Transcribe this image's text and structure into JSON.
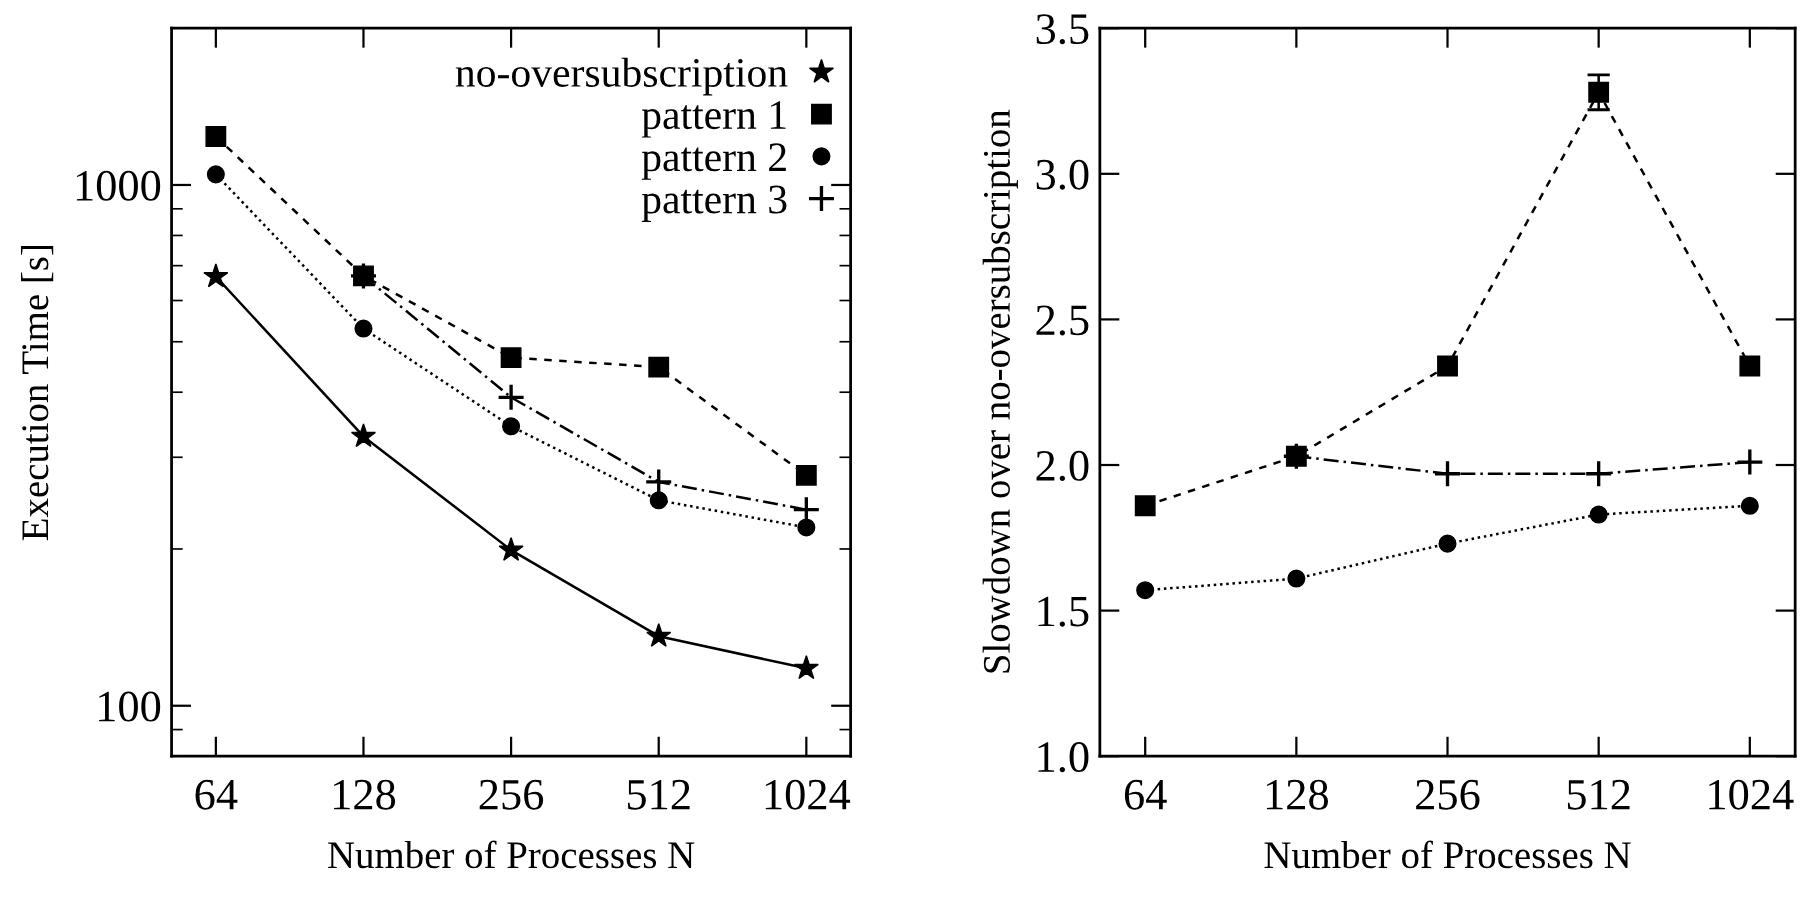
{
  "chart_data": [
    {
      "type": "line",
      "categories": [
        "64",
        "128",
        "256",
        "512",
        "1024"
      ],
      "xlabel": "Number of Processes N",
      "ylabel": "Execution Time [s]",
      "log": "y",
      "ylim": [
        80,
        2000
      ],
      "yticks": [
        100,
        1000
      ],
      "legend": "top right",
      "series": [
        {
          "name": "no-oversubscription",
          "color": "#000000",
          "marker": "star",
          "line_style": "solid",
          "values": [
            667,
            329,
            199,
            136,
            118
          ]
        },
        {
          "name": "pattern 1",
          "color": "#000000",
          "marker": "square",
          "line_style": "dashed",
          "values": [
            1239,
            669,
            466,
            447,
            277
          ]
        },
        {
          "name": "pattern 2",
          "color": "#000000",
          "marker": "circle",
          "line_style": "dotted",
          "values": [
            1048,
            530,
            344,
            248,
            220
          ]
        },
        {
          "name": "pattern 3",
          "color": "#000000",
          "marker": "cross",
          "line_style": "dashdot",
          "values": [
            null,
            669,
            391,
            269,
            238
          ]
        }
      ]
    },
    {
      "type": "line",
      "categories": [
        "64",
        "128",
        "256",
        "512",
        "1024"
      ],
      "xlabel": "Number of Processes N",
      "ylabel": "Slowdown over no-oversubscription",
      "ylim": [
        1.0,
        3.5
      ],
      "yticks": [
        {
          "value": 1.0,
          "label": "1.0"
        },
        {
          "value": 1.5,
          "label": "1.5"
        },
        {
          "value": 2.0,
          "label": "2.0"
        },
        {
          "value": 2.5,
          "label": "2.5"
        },
        {
          "value": 3.0,
          "label": "3.0"
        },
        {
          "value": 3.5,
          "label": "3.5"
        }
      ],
      "series": [
        {
          "color": "#000000",
          "marker": "square",
          "line_style": "dashed",
          "values": [
            1.86,
            2.03,
            2.34,
            3.28,
            2.34
          ],
          "errors": [
            null,
            null,
            null,
            [
              3.22,
              3.34
            ],
            null
          ]
        },
        {
          "color": "#000000",
          "marker": "circle",
          "line_style": "dotted",
          "values": [
            1.57,
            1.61,
            1.73,
            1.83,
            1.86
          ]
        },
        {
          "color": "#000000",
          "marker": "cross",
          "line_style": "dashdot",
          "values": [
            null,
            2.03,
            1.97,
            1.97,
            2.01
          ]
        }
      ]
    }
  ]
}
